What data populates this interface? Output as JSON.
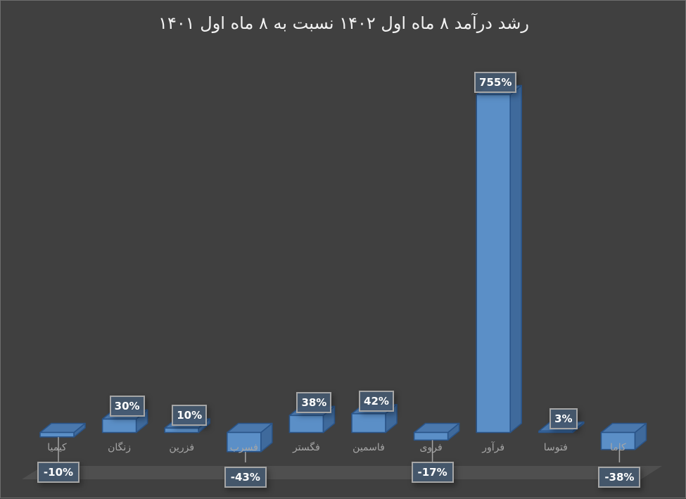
{
  "chart_data": {
    "type": "bar",
    "style": "3d-column",
    "title": "رشد درآمد ۸ ماه اول ۱۴۰۲ نسبت به ۸ ماه اول ۱۴۰۱",
    "xlabel": "",
    "ylabel": "",
    "categories": [
      "کیمیا",
      "زنگان",
      "فزرین",
      "فسرب",
      "فگستر",
      "فاسمین",
      "فروی",
      "فرآور",
      "فتوسا",
      "کاما"
    ],
    "values": [
      -10,
      30,
      10,
      -43,
      38,
      42,
      -17,
      755,
      3,
      -38
    ],
    "value_labels": [
      "-10%",
      "30%",
      "10%",
      "-43%",
      "38%",
      "42%",
      "-17%",
      "755%",
      "3%",
      "-38%"
    ],
    "unit": "%",
    "grid": false,
    "legend": "none",
    "colors": {
      "background": "#404040",
      "bar_front": "#5b8fc7",
      "bar_top": "#4a78ad",
      "bar_side": "#3f6a9c",
      "bar_edge": "#2a5488",
      "floor": "#4f4f4f",
      "label_bg": "#44586e",
      "label_border": "#a6a6a6",
      "title": "#f2f2f2",
      "category_text": "#a6a6a6"
    }
  }
}
